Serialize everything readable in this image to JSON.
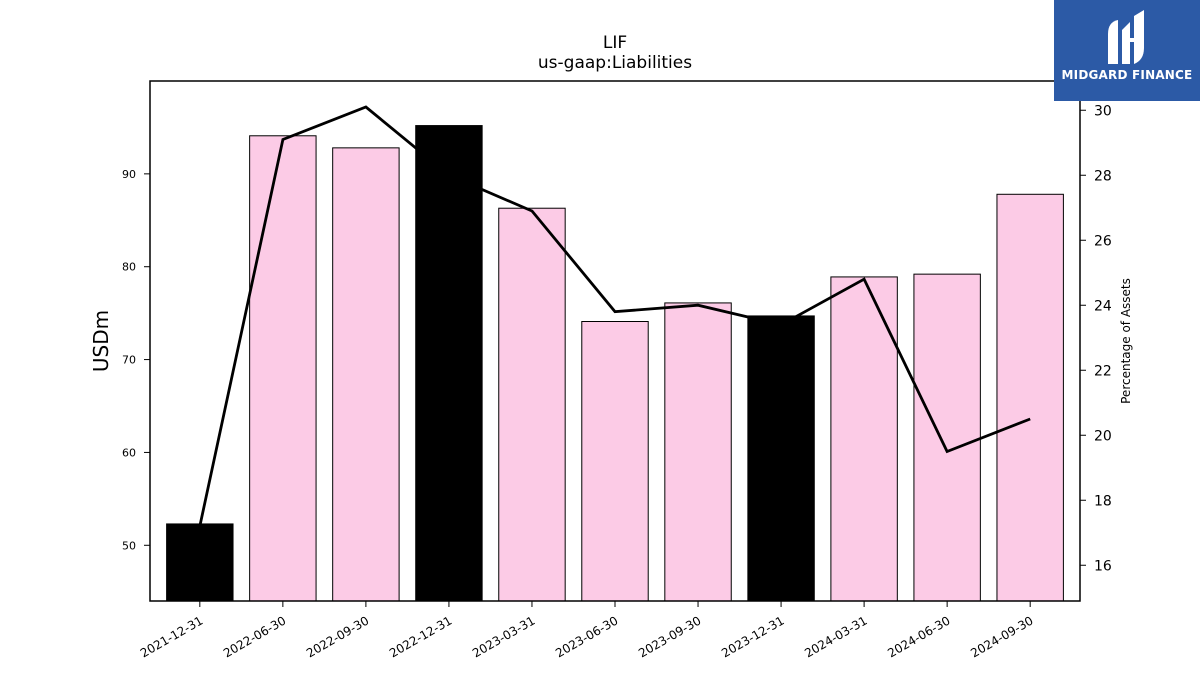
{
  "chart_data": {
    "type": "bar",
    "title": "LIF",
    "subtitle": "us-gaap:Liabilities",
    "ylabel": "USDm",
    "y2label": "Percentage of Assets",
    "categories": [
      "2021-12-31",
      "2022-06-30",
      "2022-09-30",
      "2022-12-31",
      "2023-03-31",
      "2023-06-30",
      "2023-09-30",
      "2023-12-31",
      "2024-03-31",
      "2024-06-30",
      "2024-09-30"
    ],
    "values": [
      52.3,
      94.1,
      92.8,
      95.2,
      86.3,
      74.1,
      76.1,
      74.7,
      78.9,
      79.2,
      87.8
    ],
    "highlight": [
      true,
      false,
      false,
      true,
      false,
      false,
      false,
      true,
      false,
      false,
      false
    ],
    "percent_of_assets": [
      17.2,
      29.1,
      30.1,
      28.0,
      26.9,
      23.8,
      24.0,
      23.4,
      24.8,
      19.5,
      20.5
    ],
    "ylim": [
      44,
      100
    ],
    "y2lim": [
      14.9,
      30.9
    ],
    "yticks": [
      50,
      60,
      70,
      80,
      90
    ],
    "y2ticks": [
      16,
      18,
      20,
      22,
      24,
      26,
      28,
      30
    ],
    "bar_color": "#fccbe6",
    "highlight_color": "#000000",
    "line_color": "#000000",
    "grid": false
  },
  "logo": {
    "text": "MIDGARD FINANCE",
    "background": "#2c5aa6"
  }
}
